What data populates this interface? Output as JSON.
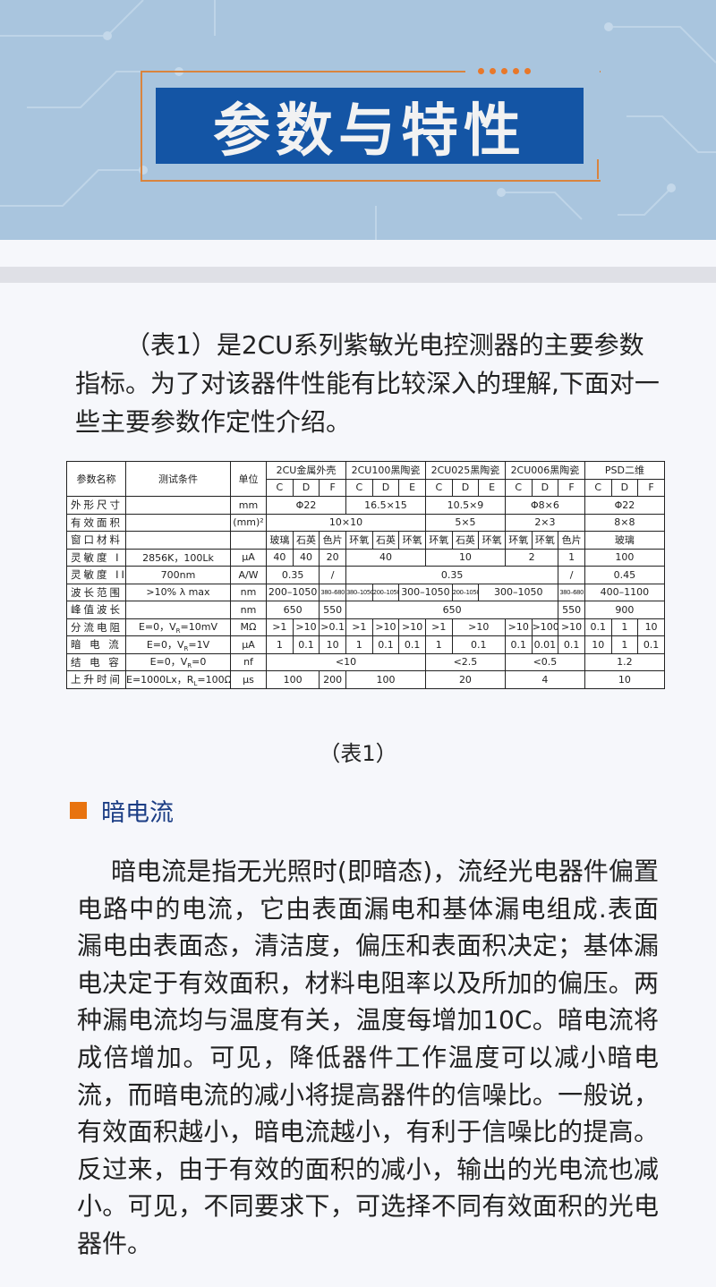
{
  "banner": {
    "title": "参数与特性",
    "accent": "#1455a5",
    "frame_color": "#d9843e"
  },
  "intro": "（表1）是2CU系列紫敏光电控测器的主要参数指标。为了对该器件性能有比较深入的理解,下面对一些主要参数作定性介绍。",
  "table": {
    "head": {
      "name": "参数名称",
      "cond": "测试条件",
      "unit": "单位",
      "groups": [
        "2CU金属外壳",
        "2CU100黑陶瓷",
        "2CU025黑陶瓷",
        "2CU006黑陶瓷",
        "PSD二维"
      ],
      "subs": [
        "C",
        "D",
        "F",
        "C",
        "D",
        "E",
        "C",
        "D",
        "E",
        "C",
        "D",
        "F",
        "C",
        "D",
        "F"
      ]
    },
    "rows": [
      {
        "name": "外形尺寸",
        "cond": {
          "a": ""
        },
        "unit": "mm",
        "cells": [
          {
            "t": "Φ22",
            "span": 3
          },
          {
            "t": "16.5×15",
            "span": 3
          },
          {
            "t": "10.5×9",
            "span": 3
          },
          {
            "t": "Φ8×6",
            "span": 3
          },
          {
            "t": "Φ22",
            "span": 3
          }
        ]
      },
      {
        "name": "有效面积",
        "cond": {
          "a": ""
        },
        "unit": "(mm)²",
        "cells": [
          {
            "t": "10×10",
            "span": 6
          },
          {
            "t": "5×5",
            "span": 3
          },
          {
            "t": "2×3",
            "span": 3
          },
          {
            "t": "8×8",
            "span": 3
          }
        ]
      },
      {
        "name": "窗口材料",
        "cond": {
          "a": ""
        },
        "unit": "",
        "cells": [
          {
            "t": "玻璃"
          },
          {
            "t": "石英"
          },
          {
            "t": "色片"
          },
          {
            "t": "环氧"
          },
          {
            "t": "石英"
          },
          {
            "t": "环氧"
          },
          {
            "t": "环氧"
          },
          {
            "t": "石英"
          },
          {
            "t": "环氧"
          },
          {
            "t": "环氧"
          },
          {
            "t": "环氧"
          },
          {
            "t": "色片"
          },
          {
            "t": "玻璃",
            "span": 3
          }
        ]
      },
      {
        "name": "灵敏度 I",
        "cond": {
          "a": "2856K，100Lk"
        },
        "unit": "μA",
        "cells": [
          {
            "t": "40"
          },
          {
            "t": "40"
          },
          {
            "t": "20"
          },
          {
            "t": "40",
            "span": 3
          },
          {
            "t": "10",
            "span": 3
          },
          {
            "t": "2",
            "span": 2
          },
          {
            "t": "1"
          },
          {
            "t": "100",
            "span": 3
          }
        ]
      },
      {
        "name": "灵敏度 II",
        "cond": {
          "a": "700nm"
        },
        "unit": "A/W",
        "cells": [
          {
            "t": "0.35",
            "span": 2
          },
          {
            "t": "/"
          },
          {
            "t": "0.35",
            "span": 8
          },
          {
            "t": "/"
          },
          {
            "t": "0.45",
            "span": 3
          }
        ]
      },
      {
        "name": "波长范围",
        "cond": {
          "a": ">10% λ max"
        },
        "unit": "nm",
        "cells": [
          {
            "t": "200–1050",
            "span": 2
          },
          {
            "t": "380–680",
            "tiny": true
          },
          {
            "t": "380–1050",
            "tiny": true
          },
          {
            "t": "200–1050",
            "tiny": true
          },
          {
            "t": "300–1050",
            "span": 2
          },
          {
            "t": "200–1050",
            "tiny": true
          },
          {
            "t": "300–1050",
            "span": 3
          },
          {
            "t": "380–680",
            "tiny": true
          },
          {
            "t": "400–1100",
            "span": 3
          }
        ]
      },
      {
        "name": "峰值波长",
        "cond": {
          "a": ""
        },
        "unit": "nm",
        "cells": [
          {
            "t": "650",
            "span": 2
          },
          {
            "t": "550"
          },
          {
            "t": "650",
            "span": 8
          },
          {
            "t": "550"
          },
          {
            "t": "900",
            "span": 3
          }
        ]
      },
      {
        "name": "分流电阻",
        "cond": {
          "a": "E=0，V",
          "sub": "R",
          "b": "=10mV"
        },
        "unit": "MΩ",
        "cells": [
          {
            "t": ">1"
          },
          {
            "t": ">10"
          },
          {
            "t": ">0.1"
          },
          {
            "t": ">1"
          },
          {
            "t": ">10"
          },
          {
            "t": ">10"
          },
          {
            "t": ">1"
          },
          {
            "t": ">10",
            "span": 2
          },
          {
            "t": ">10"
          },
          {
            "t": ">100"
          },
          {
            "t": ">10"
          },
          {
            "t": "0.1"
          },
          {
            "t": "1"
          },
          {
            "t": "10"
          }
        ]
      },
      {
        "name": "暗 电 流",
        "cond": {
          "a": "E=0，V",
          "sub": "R",
          "b": "=1V"
        },
        "unit": "μA",
        "cells": [
          {
            "t": "1"
          },
          {
            "t": "0.1"
          },
          {
            "t": "10"
          },
          {
            "t": "1"
          },
          {
            "t": "0.1"
          },
          {
            "t": "0.1"
          },
          {
            "t": "1"
          },
          {
            "t": "0.1",
            "span": 2
          },
          {
            "t": "0.1"
          },
          {
            "t": "0.01"
          },
          {
            "t": "0.1"
          },
          {
            "t": "10"
          },
          {
            "t": "1"
          },
          {
            "t": "0.1"
          }
        ]
      },
      {
        "name": "结 电 容",
        "cond": {
          "a": "E=0，V",
          "sub": "R",
          "b": "=0"
        },
        "unit": "nf",
        "cells": [
          {
            "t": "<10",
            "span": 6
          },
          {
            "t": "<2.5",
            "span": 3
          },
          {
            "t": "<0.5",
            "span": 3
          },
          {
            "t": "1.2",
            "span": 3
          }
        ]
      },
      {
        "name": "上升时间",
        "cond": {
          "a": "E=1000Lx，R",
          "sub": "L",
          "b": "=100Ω"
        },
        "unit": "μs",
        "cells": [
          {
            "t": "100",
            "span": 2
          },
          {
            "t": "200"
          },
          {
            "t": "100",
            "span": 3
          },
          {
            "t": "20",
            "span": 3
          },
          {
            "t": "4",
            "span": 3
          },
          {
            "t": "10",
            "span": 3
          }
        ]
      }
    ]
  },
  "caption": "（表1）",
  "section": {
    "title": "暗电流",
    "marker_color": "#e8730f"
  },
  "body": "暗电流是指无光照时(即暗态)，流经光电器件偏置电路中的电流，它由表面漏电和基体漏电组成.表面漏电由表面态，清洁度，偏压和表面积决定；基体漏电决定于有效面积，材料电阻率以及所加的偏压。两种漏电流均与温度有关，温度每增加10C。暗电流将成倍增加。可见，降低器件工作温度可以减小暗电流，而暗电流的减小将提高器件的信噪比。一般说，有效面积越小，暗电流越小，有利于信噪比的提高。反过来，由于有效的面积的减小，输出的光电流也减小。可见，不同要求下，可选择不同有效面积的光电器件。"
}
